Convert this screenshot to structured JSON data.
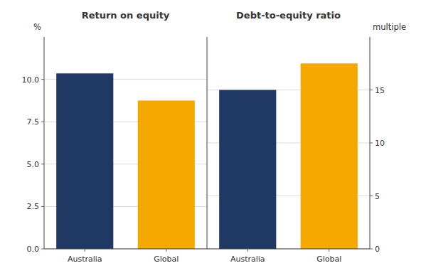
{
  "chart_data": [
    {
      "type": "bar",
      "title": "Return on equity",
      "ylabel": "%",
      "categories": [
        "Australia",
        "Global"
      ],
      "values": [
        10.35,
        8.75
      ],
      "colors": [
        "#1f3864",
        "#f5a800"
      ],
      "ylim": [
        0,
        12.5
      ],
      "yticks": [
        {
          "value": 0,
          "label": "0.0"
        },
        2.5,
        {
          "value": 5,
          "label": "5.0"
        },
        7.5,
        {
          "value": 10,
          "label": "10.0"
        }
      ],
      "grid": true
    },
    {
      "type": "bar",
      "title": "Debt-to-equity ratio",
      "ylabel": "multiple",
      "categories": [
        "Australia",
        "Global"
      ],
      "values": [
        15,
        17.5
      ],
      "colors": [
        "#1f3864",
        "#f5a800"
      ],
      "ylim": [
        0,
        20
      ],
      "yticks": [
        0,
        5,
        10,
        15
      ],
      "grid": true
    }
  ]
}
